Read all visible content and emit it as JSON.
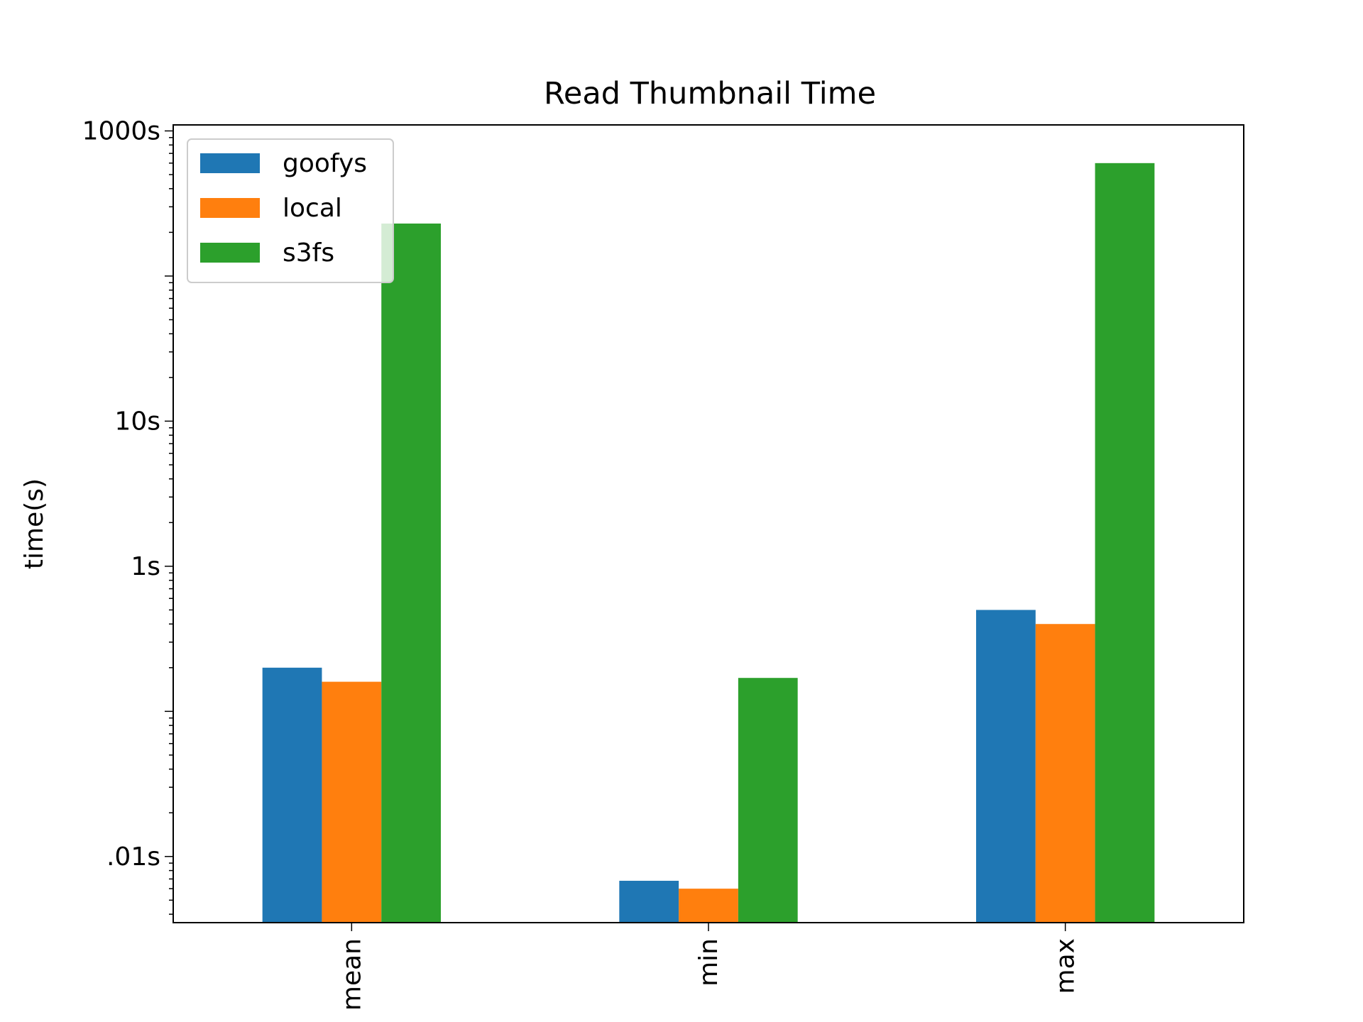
{
  "chart_data": {
    "type": "bar",
    "title": "Read Thumbnail Time",
    "xlabel": "",
    "ylabel": "time(s)",
    "yscale": "log",
    "ylim": [
      0.0035,
      1100
    ],
    "yticks": [
      {
        "value": 1000,
        "label": "1000s"
      },
      {
        "value": 10,
        "label": "10s"
      },
      {
        "value": 1,
        "label": "1s"
      },
      {
        "value": 0.01,
        "label": ".01s"
      }
    ],
    "categories": [
      "mean",
      "min",
      "max"
    ],
    "xtick_rotation": 90,
    "series": [
      {
        "name": "goofys",
        "color": "#1f77b4",
        "values": [
          0.2,
          0.0068,
          0.5
        ]
      },
      {
        "name": "local",
        "color": "#ff7f0e",
        "values": [
          0.16,
          0.006,
          0.4
        ]
      },
      {
        "name": "s3fs",
        "color": "#2ca02c",
        "values": [
          230,
          0.17,
          600
        ]
      }
    ],
    "legend": {
      "position": "top-left"
    },
    "grid": false
  }
}
